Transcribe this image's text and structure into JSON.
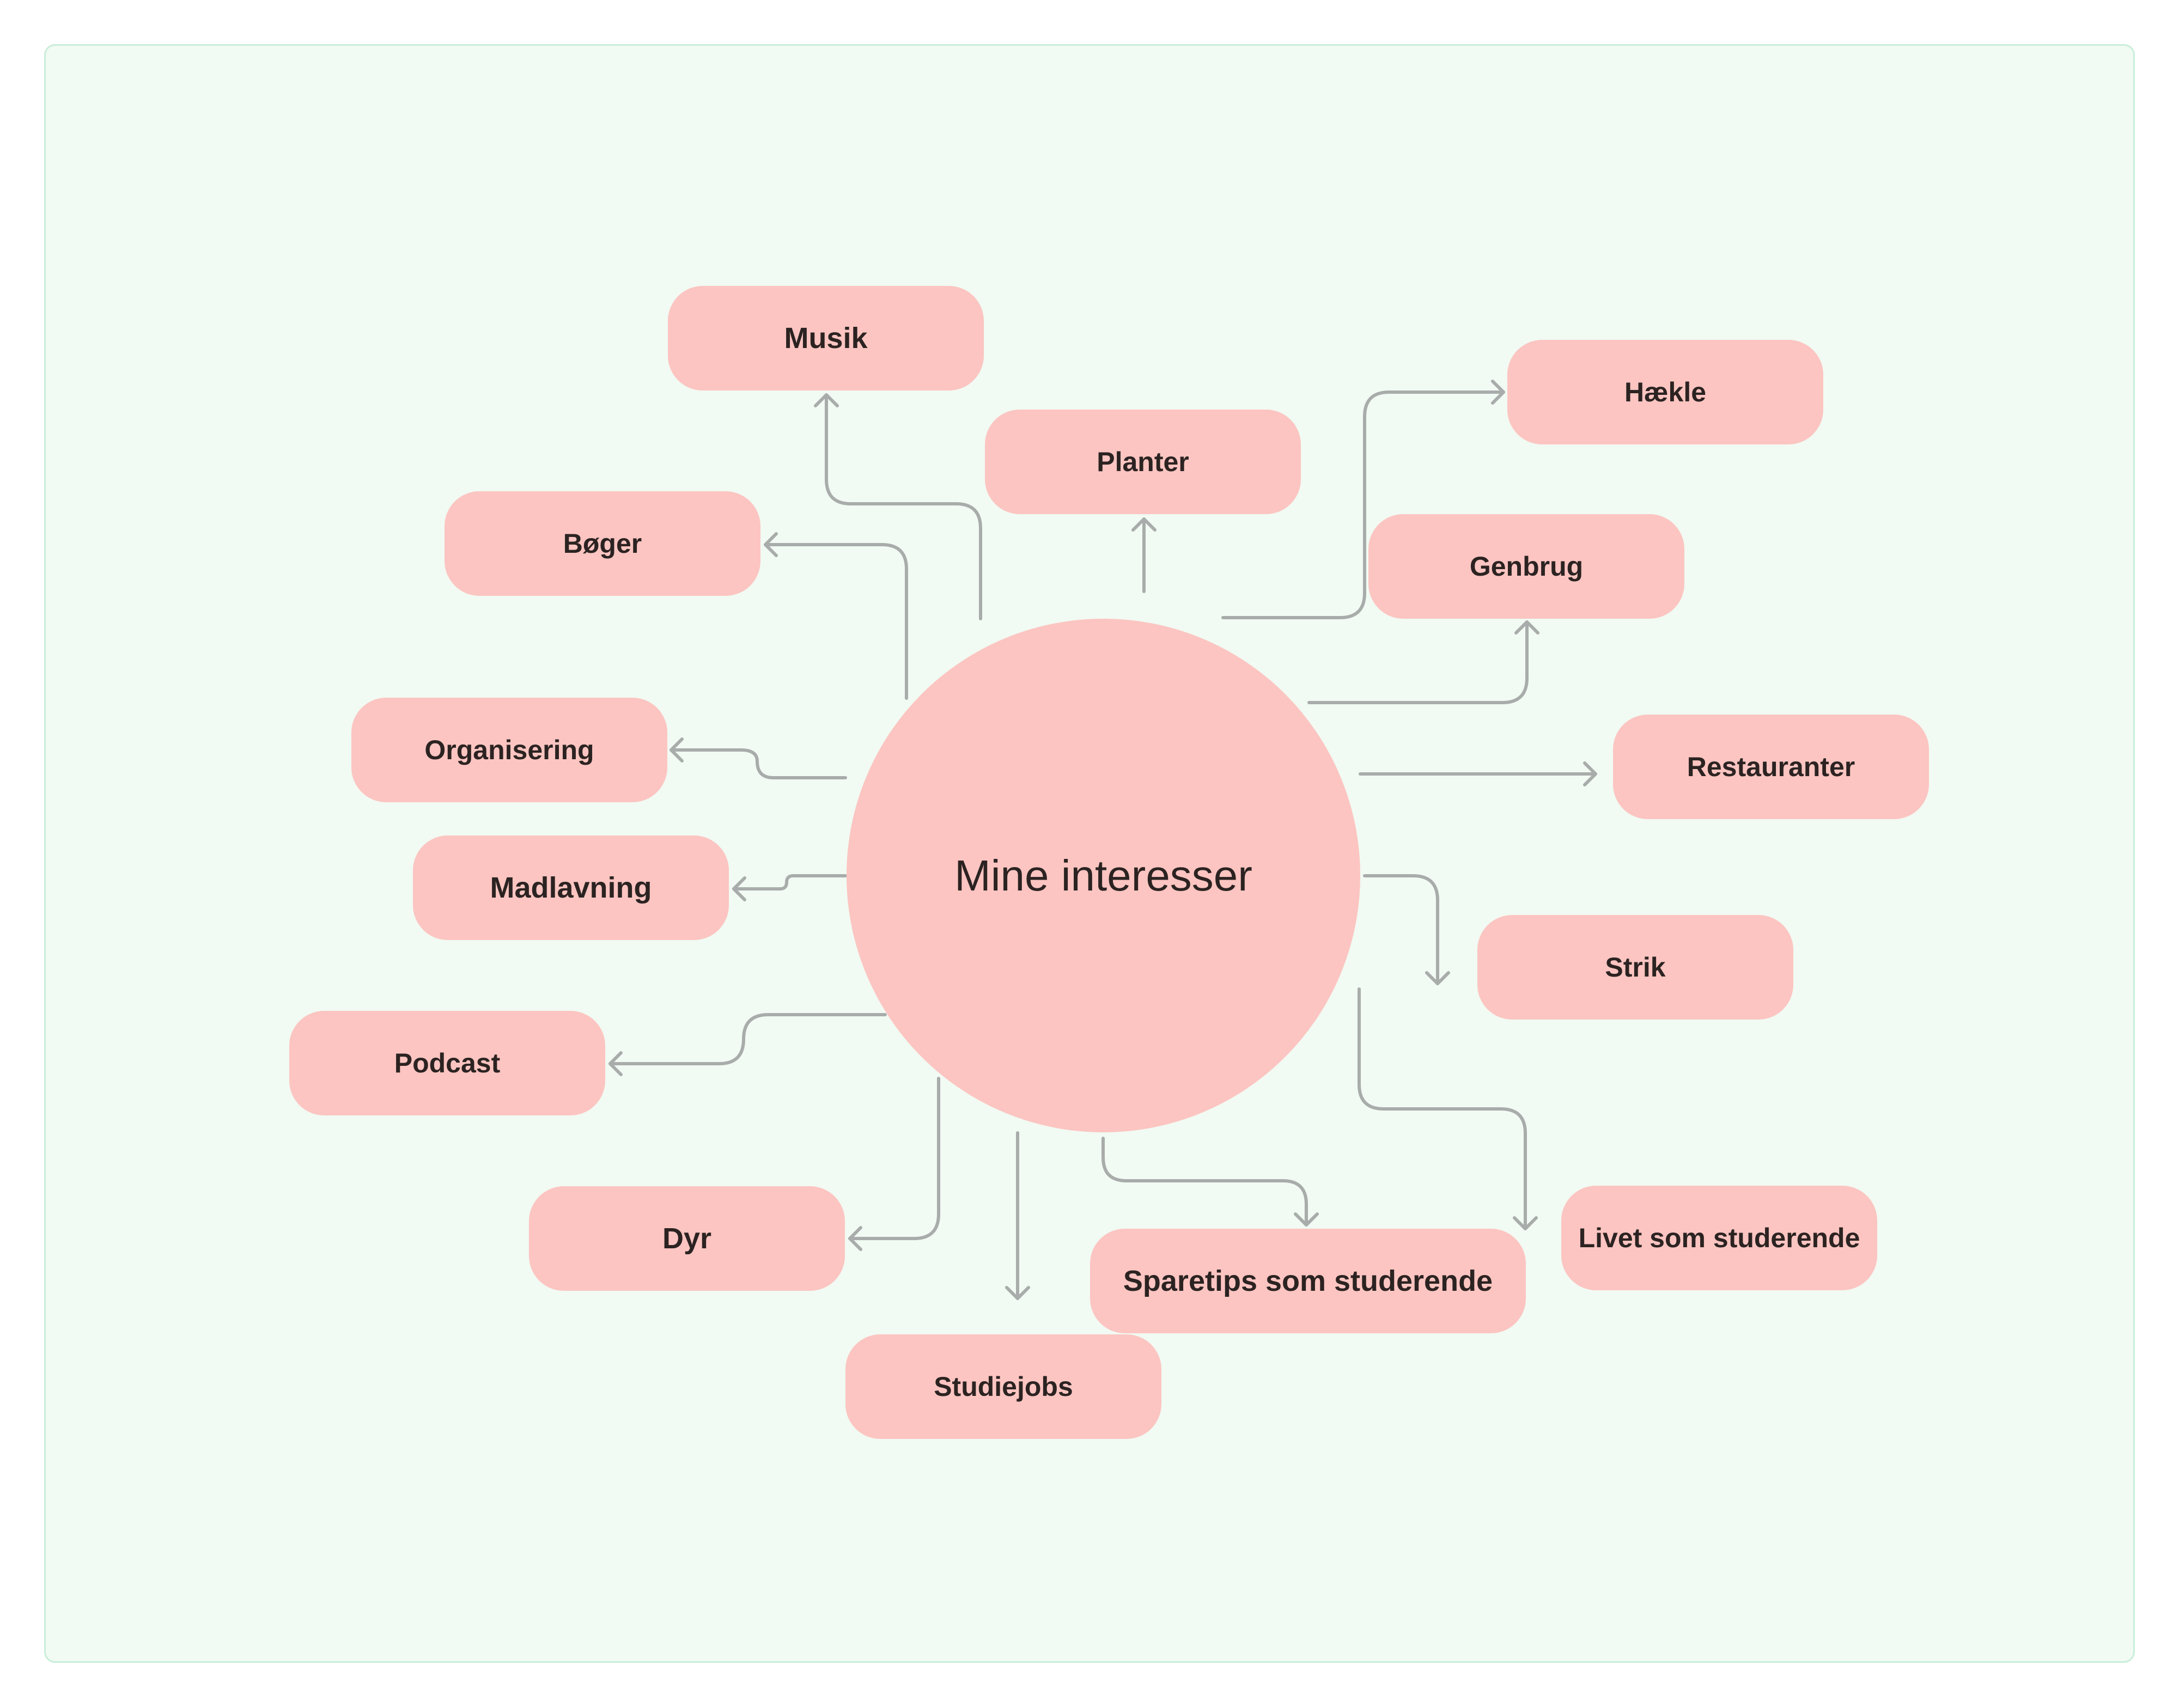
{
  "diagram": {
    "type": "mind-map",
    "center": {
      "label": "Mine interesser"
    },
    "nodes": [
      {
        "id": "musik",
        "label": "Musik"
      },
      {
        "id": "planter",
        "label": "Planter"
      },
      {
        "id": "haekle",
        "label": "Hækle"
      },
      {
        "id": "boger",
        "label": "Bøger"
      },
      {
        "id": "genbrug",
        "label": "Genbrug"
      },
      {
        "id": "organisering",
        "label": "Organisering"
      },
      {
        "id": "restauranter",
        "label": "Restauranter"
      },
      {
        "id": "madlavning",
        "label": "Madlavning"
      },
      {
        "id": "strik",
        "label": "Strik"
      },
      {
        "id": "podcast",
        "label": "Podcast"
      },
      {
        "id": "dyr",
        "label": "Dyr"
      },
      {
        "id": "livet",
        "label": "Livet som studerende"
      },
      {
        "id": "sparetips",
        "label": "Sparetips som studerende"
      },
      {
        "id": "studiejobs",
        "label": "Studiejobs"
      }
    ],
    "edges": [
      {
        "from": "center",
        "to": "musik"
      },
      {
        "from": "center",
        "to": "planter"
      },
      {
        "from": "center",
        "to": "haekle"
      },
      {
        "from": "center",
        "to": "boger"
      },
      {
        "from": "center",
        "to": "genbrug"
      },
      {
        "from": "center",
        "to": "organisering"
      },
      {
        "from": "center",
        "to": "restauranter"
      },
      {
        "from": "center",
        "to": "madlavning"
      },
      {
        "from": "center",
        "to": "strik"
      },
      {
        "from": "center",
        "to": "podcast"
      },
      {
        "from": "center",
        "to": "dyr"
      },
      {
        "from": "center",
        "to": "livet"
      },
      {
        "from": "center",
        "to": "sparetips"
      },
      {
        "from": "center",
        "to": "studiejobs"
      }
    ]
  },
  "colors": {
    "background": "#ffffff",
    "board": "#f1faf3",
    "board_border": "#c9eedb",
    "node_fill": "#fcc5c1",
    "text": "#2b2322",
    "connector": "#a8acaa"
  }
}
